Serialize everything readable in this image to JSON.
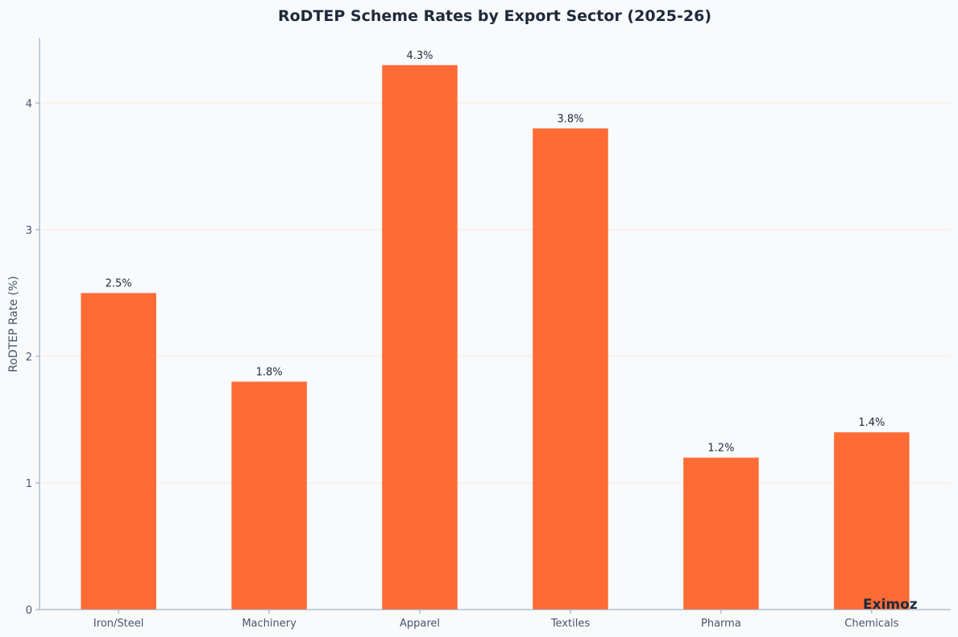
{
  "chart_data": {
    "type": "bar",
    "title": "RoDTEP Scheme Rates by Export Sector (2025-26)",
    "xlabel": "",
    "ylabel": "RoDTEP Rate (%)",
    "categories": [
      "Iron/Steel",
      "Machinery",
      "Apparel",
      "Textiles",
      "Pharma",
      "Chemicals"
    ],
    "values": [
      2.5,
      1.8,
      4.3,
      3.8,
      1.2,
      1.4
    ],
    "data_labels": [
      "2.5%",
      "1.8%",
      "4.3%",
      "3.8%",
      "1.2%",
      "1.4%"
    ],
    "ylim": [
      0,
      4.515
    ],
    "yticks": [
      0,
      1,
      2,
      3,
      4
    ],
    "ytick_labels": [
      "0",
      "1",
      "2",
      "3",
      "4"
    ],
    "grid": true,
    "bar_color": "#ff6b35",
    "grid_color": "#fde8dc",
    "axis_color": "#8fa3bf"
  },
  "watermark": "Eximoz"
}
